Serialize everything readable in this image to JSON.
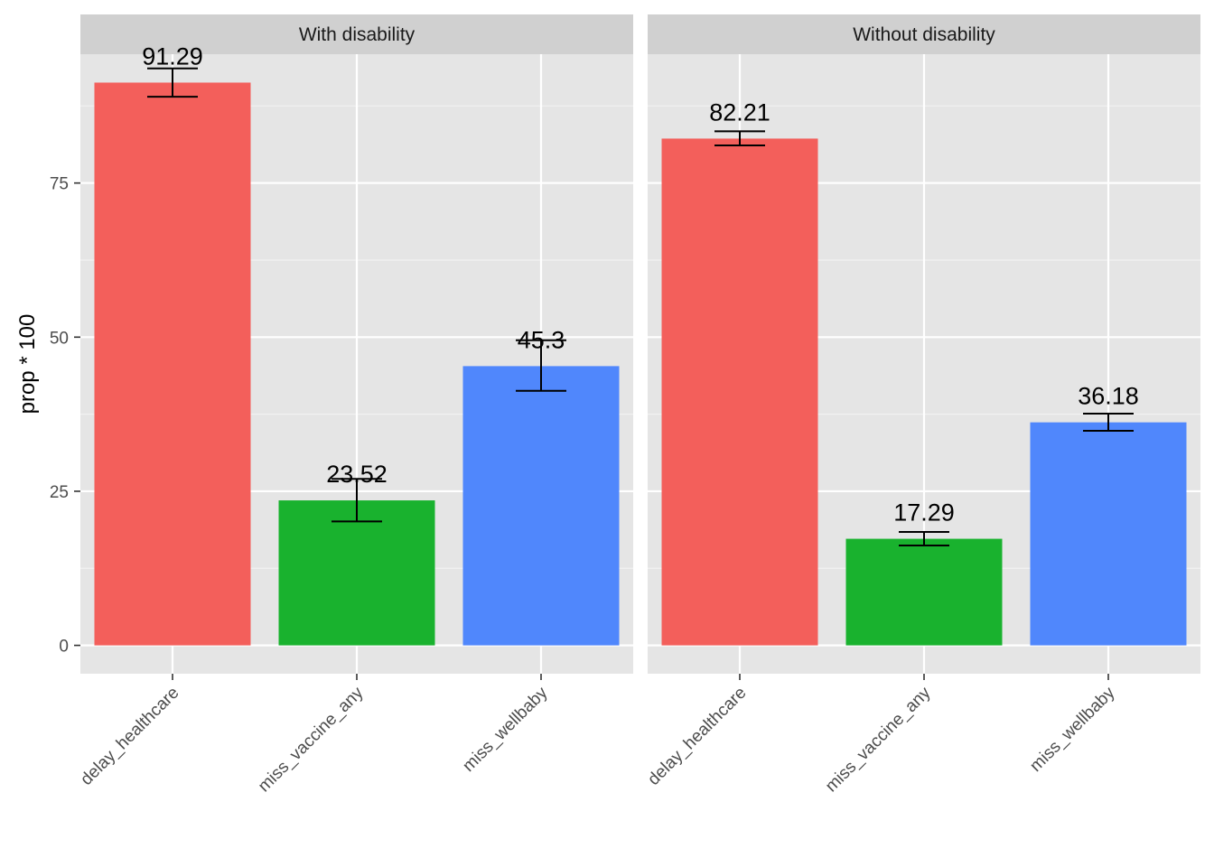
{
  "chart_data": {
    "type": "bar",
    "ylabel": "prop * 100",
    "xlabel": "",
    "ylim": [
      -4.6,
      95.9
    ],
    "yticks": [
      0,
      25,
      50,
      75
    ],
    "categories": [
      "delay_healthcare",
      "miss_vaccine_any",
      "miss_wellbaby"
    ],
    "category_colors": [
      "#F35F5B",
      "#19B22E",
      "#5087FC"
    ],
    "panel_background": "#E5E5E5",
    "strip_background": "#D0D0D0",
    "grid": true,
    "panels": [
      {
        "name": "With disability",
        "values": [
          91.29,
          23.52,
          45.3
        ],
        "lower": [
          89.0,
          20.1,
          41.3
        ],
        "upper": [
          93.6,
          27.0,
          49.5
        ],
        "labels": [
          "91.29",
          "23.52",
          "45.3"
        ]
      },
      {
        "name": "Without disability",
        "values": [
          82.21,
          17.29,
          36.18
        ],
        "lower": [
          81.1,
          16.2,
          34.8
        ],
        "upper": [
          83.4,
          18.4,
          37.6
        ],
        "labels": [
          "82.21",
          "17.29",
          "36.18"
        ]
      }
    ]
  }
}
